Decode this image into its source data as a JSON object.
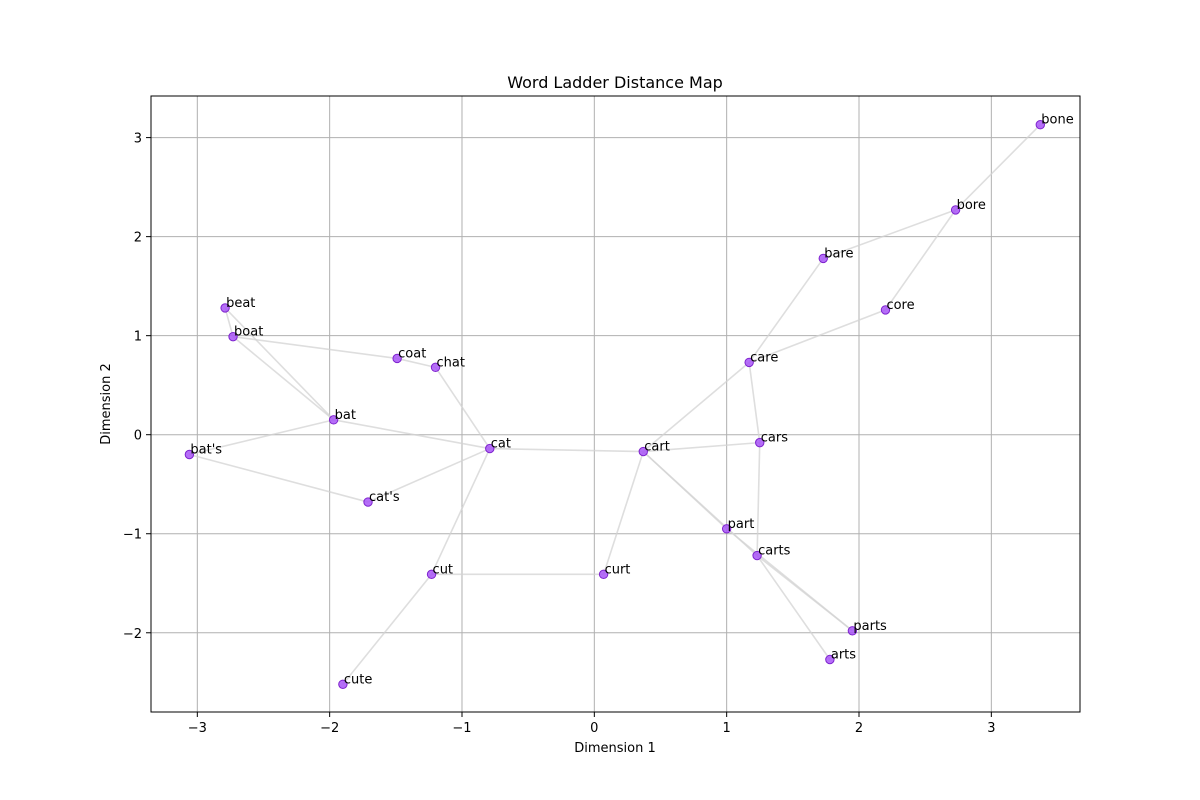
{
  "chart_data": {
    "type": "scatter",
    "title": "Word Ladder Distance Map",
    "xlabel": "Dimension 1",
    "ylabel": "Dimension 2",
    "xlim": [
      -3.35,
      3.67
    ],
    "ylim": [
      -2.8,
      3.42
    ],
    "xticks": [
      -3,
      -2,
      -1,
      0,
      1,
      2,
      3
    ],
    "yticks": [
      -2,
      -1,
      0,
      1,
      2,
      3
    ],
    "xtick_labels": [
      "−3",
      "−2",
      "−1",
      "0",
      "1",
      "2",
      "3"
    ],
    "ytick_labels": [
      "−2",
      "−1",
      "0",
      "1",
      "2",
      "3"
    ],
    "grid": true,
    "point_color": "#a855f7",
    "edge_color": "#d3d3d3",
    "points": [
      {
        "label": "bone",
        "x": 3.37,
        "y": 3.13
      },
      {
        "label": "bore",
        "x": 2.73,
        "y": 2.27
      },
      {
        "label": "bare",
        "x": 1.73,
        "y": 1.78
      },
      {
        "label": "core",
        "x": 2.2,
        "y": 1.26
      },
      {
        "label": "care",
        "x": 1.17,
        "y": 0.73
      },
      {
        "label": "cars",
        "x": 1.25,
        "y": -0.08
      },
      {
        "label": "cart",
        "x": 0.37,
        "y": -0.17
      },
      {
        "label": "part",
        "x": 1.0,
        "y": -0.95
      },
      {
        "label": "carts",
        "x": 1.23,
        "y": -1.22
      },
      {
        "label": "parts",
        "x": 1.95,
        "y": -1.98
      },
      {
        "label": "arts",
        "x": 1.78,
        "y": -2.27
      },
      {
        "label": "curt",
        "x": 0.07,
        "y": -1.41
      },
      {
        "label": "cut",
        "x": -1.23,
        "y": -1.41
      },
      {
        "label": "cute",
        "x": -1.9,
        "y": -2.52
      },
      {
        "label": "cat",
        "x": -0.79,
        "y": -0.14
      },
      {
        "label": "cat's",
        "x": -1.71,
        "y": -0.68
      },
      {
        "label": "chat",
        "x": -1.2,
        "y": 0.68
      },
      {
        "label": "coat",
        "x": -1.49,
        "y": 0.77
      },
      {
        "label": "bat",
        "x": -1.97,
        "y": 0.15
      },
      {
        "label": "boat",
        "x": -2.73,
        "y": 0.99
      },
      {
        "label": "beat",
        "x": -2.79,
        "y": 1.28
      },
      {
        "label": "bat's",
        "x": -3.06,
        "y": -0.2
      }
    ],
    "edges": [
      [
        "bone",
        "bore"
      ],
      [
        "bore",
        "bare"
      ],
      [
        "bore",
        "core"
      ],
      [
        "bare",
        "care"
      ],
      [
        "core",
        "care"
      ],
      [
        "care",
        "cart"
      ],
      [
        "care",
        "cars"
      ],
      [
        "cars",
        "carts"
      ],
      [
        "cart",
        "cars"
      ],
      [
        "cart",
        "part"
      ],
      [
        "cart",
        "carts"
      ],
      [
        "cart",
        "curt"
      ],
      [
        "cart",
        "cat"
      ],
      [
        "part",
        "parts"
      ],
      [
        "carts",
        "parts"
      ],
      [
        "carts",
        "arts"
      ],
      [
        "curt",
        "cut"
      ],
      [
        "cut",
        "cat"
      ],
      [
        "cut",
        "cute"
      ],
      [
        "cat",
        "chat"
      ],
      [
        "cat",
        "bat"
      ],
      [
        "cat",
        "cat's"
      ],
      [
        "chat",
        "coat"
      ],
      [
        "coat",
        "boat"
      ],
      [
        "boat",
        "bat"
      ],
      [
        "boat",
        "beat"
      ],
      [
        "beat",
        "bat"
      ],
      [
        "bat",
        "bat's"
      ],
      [
        "bat's",
        "cat's"
      ]
    ]
  }
}
